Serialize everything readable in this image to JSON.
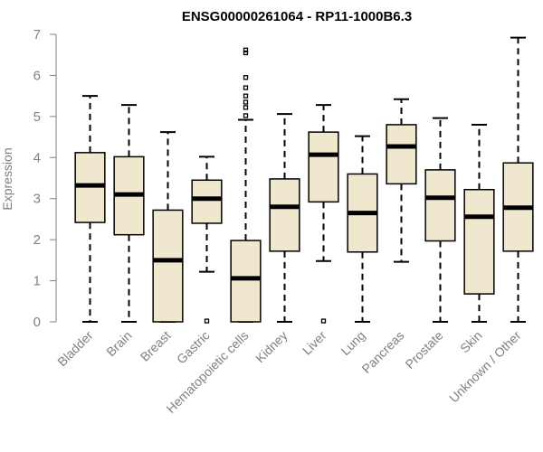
{
  "chart_data": {
    "type": "boxplot",
    "title": "ENSG00000261064 - RP11-1000B6.3",
    "ylabel": "Expression",
    "ylim": [
      0,
      7
    ],
    "yticks": [
      "0",
      "1",
      "2",
      "3",
      "4",
      "5",
      "6",
      "7"
    ],
    "grid": false,
    "colors": {
      "box_fill": "#efe8cf",
      "outline": "#000000",
      "axis": "#808080"
    },
    "categories": [
      "Bladder",
      "Brain",
      "Breast",
      "Gastric",
      "Hematopoietic cells",
      "Kidney",
      "Liver",
      "Lung",
      "Pancreas",
      "Prostate",
      "Skin",
      "Unknown / Other"
    ],
    "boxes": [
      {
        "min": 0,
        "q1": 2.42,
        "median": 3.32,
        "q3": 4.12,
        "max": 5.5,
        "outliers": []
      },
      {
        "min": 0,
        "q1": 2.12,
        "median": 3.1,
        "q3": 4.02,
        "max": 5.28,
        "outliers": []
      },
      {
        "min": 0,
        "q1": 0,
        "median": 1.5,
        "q3": 2.72,
        "max": 4.62,
        "outliers": []
      },
      {
        "min": 1.22,
        "q1": 2.4,
        "median": 3.0,
        "q3": 3.45,
        "max": 4.02,
        "outliers": [
          0.02
        ]
      },
      {
        "min": 0,
        "q1": 0,
        "median": 1.06,
        "q3": 1.98,
        "max": 4.92,
        "outliers": [
          5.02,
          5.22,
          5.35,
          5.5,
          5.7,
          5.95,
          6.55,
          6.62
        ]
      },
      {
        "min": 0,
        "q1": 1.72,
        "median": 2.8,
        "q3": 3.48,
        "max": 5.06,
        "outliers": []
      },
      {
        "min": 1.48,
        "q1": 2.92,
        "median": 4.07,
        "q3": 4.62,
        "max": 5.28,
        "outliers": [
          0.02
        ]
      },
      {
        "min": 0,
        "q1": 1.7,
        "median": 2.65,
        "q3": 3.6,
        "max": 4.52,
        "outliers": []
      },
      {
        "min": 1.46,
        "q1": 3.36,
        "median": 4.27,
        "q3": 4.8,
        "max": 5.42,
        "outliers": []
      },
      {
        "min": 0,
        "q1": 1.97,
        "median": 3.02,
        "q3": 3.7,
        "max": 4.96,
        "outliers": []
      },
      {
        "min": 0,
        "q1": 0.68,
        "median": 2.56,
        "q3": 3.22,
        "max": 4.8,
        "outliers": []
      },
      {
        "min": 0,
        "q1": 1.72,
        "median": 2.78,
        "q3": 3.87,
        "max": 6.92,
        "outliers": []
      }
    ]
  }
}
